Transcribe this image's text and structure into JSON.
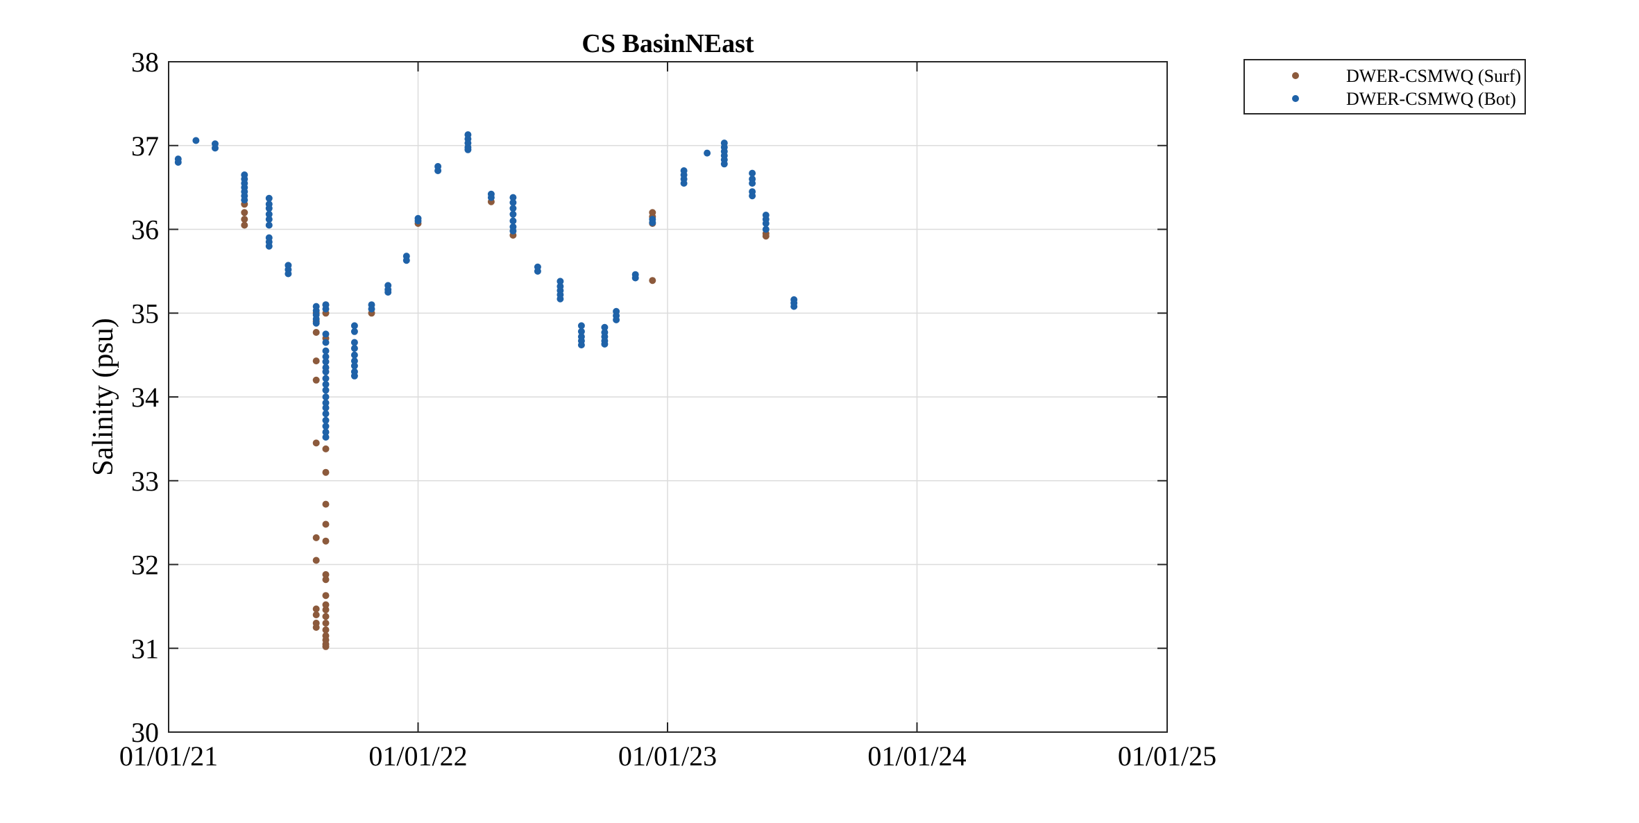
{
  "chart_data": {
    "type": "scatter",
    "title": "CS BasinNEast",
    "xlabel": "",
    "ylabel": "Salinity (psu)",
    "x_type": "date",
    "xlim": [
      "2021-01-01",
      "2025-01-01"
    ],
    "ylim": [
      30,
      38
    ],
    "x_ticks": [
      {
        "date": "2021-01-01",
        "label": "01/01/21"
      },
      {
        "date": "2022-01-01",
        "label": "01/01/22"
      },
      {
        "date": "2023-01-01",
        "label": "01/01/23"
      },
      {
        "date": "2024-01-01",
        "label": "01/01/24"
      },
      {
        "date": "2025-01-01",
        "label": "01/01/25"
      }
    ],
    "y_ticks": [
      30,
      31,
      32,
      33,
      34,
      35,
      36,
      37,
      38
    ],
    "grid": true,
    "legend_position": "outside-top-right",
    "series": [
      {
        "name": "DWER-CSMWQ (Surf)",
        "color": "#8c5a3c",
        "points": [
          [
            "2021-08-05",
            35.0
          ],
          [
            "2021-08-05",
            34.9
          ],
          [
            "2021-08-05",
            34.77
          ],
          [
            "2021-08-05",
            34.43
          ],
          [
            "2021-08-05",
            34.2
          ],
          [
            "2021-08-05",
            33.45
          ],
          [
            "2021-08-05",
            32.32
          ],
          [
            "2021-08-05",
            32.05
          ],
          [
            "2021-08-05",
            31.47
          ],
          [
            "2021-08-05",
            31.4
          ],
          [
            "2021-08-05",
            31.3
          ],
          [
            "2021-08-05",
            31.25
          ],
          [
            "2021-08-19",
            35.1
          ],
          [
            "2021-08-19",
            35.0
          ],
          [
            "2021-08-19",
            34.7
          ],
          [
            "2021-08-19",
            33.38
          ],
          [
            "2021-08-19",
            33.1
          ],
          [
            "2021-08-19",
            32.72
          ],
          [
            "2021-08-19",
            32.48
          ],
          [
            "2021-08-19",
            32.28
          ],
          [
            "2021-08-19",
            31.88
          ],
          [
            "2021-08-19",
            31.82
          ],
          [
            "2021-08-19",
            31.63
          ],
          [
            "2021-08-19",
            31.52
          ],
          [
            "2021-08-19",
            31.46
          ],
          [
            "2021-08-19",
            31.38
          ],
          [
            "2021-08-19",
            31.3
          ],
          [
            "2021-08-19",
            31.22
          ],
          [
            "2021-08-19",
            31.15
          ],
          [
            "2021-08-19",
            31.1
          ],
          [
            "2021-08-19",
            31.05
          ],
          [
            "2021-08-19",
            31.02
          ],
          [
            "2021-04-22",
            36.3
          ],
          [
            "2021-04-22",
            36.2
          ],
          [
            "2021-04-22",
            36.12
          ],
          [
            "2021-04-22",
            36.05
          ],
          [
            "2021-10-25",
            35.0
          ],
          [
            "2022-01-01",
            36.07
          ],
          [
            "2022-04-18",
            36.33
          ],
          [
            "2022-05-20",
            35.93
          ],
          [
            "2022-12-10",
            36.2
          ],
          [
            "2022-12-10",
            36.15
          ],
          [
            "2022-12-10",
            36.07
          ],
          [
            "2022-12-10",
            35.39
          ],
          [
            "2023-05-25",
            35.95
          ],
          [
            "2023-05-25",
            35.92
          ]
        ]
      },
      {
        "name": "DWER-CSMWQ (Bot)",
        "color": "#1f62a8",
        "points": [
          [
            "2021-01-15",
            36.84
          ],
          [
            "2021-01-15",
            36.8
          ],
          [
            "2021-02-10",
            37.06
          ],
          [
            "2021-03-10",
            37.02
          ],
          [
            "2021-03-10",
            36.97
          ],
          [
            "2021-04-22",
            36.65
          ],
          [
            "2021-04-22",
            36.6
          ],
          [
            "2021-04-22",
            36.55
          ],
          [
            "2021-04-22",
            36.5
          ],
          [
            "2021-04-22",
            36.45
          ],
          [
            "2021-04-22",
            36.4
          ],
          [
            "2021-04-22",
            36.35
          ],
          [
            "2021-05-28",
            36.37
          ],
          [
            "2021-05-28",
            36.3
          ],
          [
            "2021-05-28",
            36.25
          ],
          [
            "2021-05-28",
            36.18
          ],
          [
            "2021-05-28",
            36.12
          ],
          [
            "2021-05-28",
            36.05
          ],
          [
            "2021-05-28",
            35.9
          ],
          [
            "2021-05-28",
            35.85
          ],
          [
            "2021-05-28",
            35.8
          ],
          [
            "2021-06-25",
            35.57
          ],
          [
            "2021-06-25",
            35.52
          ],
          [
            "2021-06-25",
            35.47
          ],
          [
            "2021-08-05",
            35.08
          ],
          [
            "2021-08-05",
            35.03
          ],
          [
            "2021-08-05",
            34.98
          ],
          [
            "2021-08-05",
            34.93
          ],
          [
            "2021-08-05",
            34.88
          ],
          [
            "2021-08-19",
            35.1
          ],
          [
            "2021-08-19",
            35.05
          ],
          [
            "2021-08-19",
            34.75
          ],
          [
            "2021-08-19",
            34.65
          ],
          [
            "2021-08-19",
            34.55
          ],
          [
            "2021-08-19",
            34.48
          ],
          [
            "2021-08-19",
            34.42
          ],
          [
            "2021-08-19",
            34.35
          ],
          [
            "2021-08-19",
            34.3
          ],
          [
            "2021-08-19",
            34.22
          ],
          [
            "2021-08-19",
            34.15
          ],
          [
            "2021-08-19",
            34.08
          ],
          [
            "2021-08-19",
            34.0
          ],
          [
            "2021-08-19",
            33.93
          ],
          [
            "2021-08-19",
            33.87
          ],
          [
            "2021-08-19",
            33.8
          ],
          [
            "2021-08-19",
            33.72
          ],
          [
            "2021-08-19",
            33.65
          ],
          [
            "2021-08-19",
            33.58
          ],
          [
            "2021-08-19",
            33.52
          ],
          [
            "2021-09-30",
            34.85
          ],
          [
            "2021-09-30",
            34.78
          ],
          [
            "2021-09-30",
            34.65
          ],
          [
            "2021-09-30",
            34.58
          ],
          [
            "2021-09-30",
            34.5
          ],
          [
            "2021-09-30",
            34.43
          ],
          [
            "2021-09-30",
            34.37
          ],
          [
            "2021-09-30",
            34.3
          ],
          [
            "2021-09-30",
            34.25
          ],
          [
            "2021-10-25",
            35.1
          ],
          [
            "2021-10-25",
            35.05
          ],
          [
            "2021-11-18",
            35.33
          ],
          [
            "2021-11-18",
            35.28
          ],
          [
            "2021-11-18",
            35.25
          ],
          [
            "2021-12-15",
            35.68
          ],
          [
            "2021-12-15",
            35.63
          ],
          [
            "2022-01-01",
            36.13
          ],
          [
            "2022-01-01",
            36.1
          ],
          [
            "2022-01-30",
            36.75
          ],
          [
            "2022-01-30",
            36.7
          ],
          [
            "2022-03-15",
            37.13
          ],
          [
            "2022-03-15",
            37.08
          ],
          [
            "2022-03-15",
            37.03
          ],
          [
            "2022-03-15",
            36.98
          ],
          [
            "2022-03-15",
            36.95
          ],
          [
            "2022-04-18",
            36.42
          ],
          [
            "2022-04-18",
            36.38
          ],
          [
            "2022-05-20",
            36.38
          ],
          [
            "2022-05-20",
            36.32
          ],
          [
            "2022-05-20",
            36.25
          ],
          [
            "2022-05-20",
            36.18
          ],
          [
            "2022-05-20",
            36.1
          ],
          [
            "2022-05-20",
            36.03
          ],
          [
            "2022-05-20",
            35.98
          ],
          [
            "2022-06-25",
            35.55
          ],
          [
            "2022-06-25",
            35.5
          ],
          [
            "2022-07-28",
            35.38
          ],
          [
            "2022-07-28",
            35.32
          ],
          [
            "2022-07-28",
            35.27
          ],
          [
            "2022-07-28",
            35.22
          ],
          [
            "2022-07-28",
            35.17
          ],
          [
            "2022-08-28",
            34.85
          ],
          [
            "2022-08-28",
            34.78
          ],
          [
            "2022-08-28",
            34.72
          ],
          [
            "2022-08-28",
            34.67
          ],
          [
            "2022-08-28",
            34.62
          ],
          [
            "2022-10-01",
            34.83
          ],
          [
            "2022-10-01",
            34.77
          ],
          [
            "2022-10-01",
            34.72
          ],
          [
            "2022-10-01",
            34.67
          ],
          [
            "2022-10-01",
            34.63
          ],
          [
            "2022-10-18",
            35.02
          ],
          [
            "2022-10-18",
            34.97
          ],
          [
            "2022-10-18",
            34.92
          ],
          [
            "2022-11-15",
            35.46
          ],
          [
            "2022-11-15",
            35.42
          ],
          [
            "2022-12-10",
            36.12
          ],
          [
            "2022-12-10",
            36.08
          ],
          [
            "2023-01-25",
            36.7
          ],
          [
            "2023-01-25",
            36.65
          ],
          [
            "2023-01-25",
            36.6
          ],
          [
            "2023-01-25",
            36.55
          ],
          [
            "2023-02-28",
            36.91
          ],
          [
            "2023-03-25",
            37.03
          ],
          [
            "2023-03-25",
            36.98
          ],
          [
            "2023-03-25",
            36.93
          ],
          [
            "2023-03-25",
            36.88
          ],
          [
            "2023-03-25",
            36.83
          ],
          [
            "2023-03-25",
            36.78
          ],
          [
            "2023-05-05",
            36.67
          ],
          [
            "2023-05-05",
            36.6
          ],
          [
            "2023-05-05",
            36.55
          ],
          [
            "2023-05-05",
            36.45
          ],
          [
            "2023-05-05",
            36.4
          ],
          [
            "2023-05-25",
            36.17
          ],
          [
            "2023-05-25",
            36.12
          ],
          [
            "2023-05-25",
            36.07
          ],
          [
            "2023-05-25",
            36.0
          ],
          [
            "2023-07-05",
            35.16
          ],
          [
            "2023-07-05",
            35.12
          ],
          [
            "2023-07-05",
            35.08
          ]
        ]
      }
    ]
  }
}
